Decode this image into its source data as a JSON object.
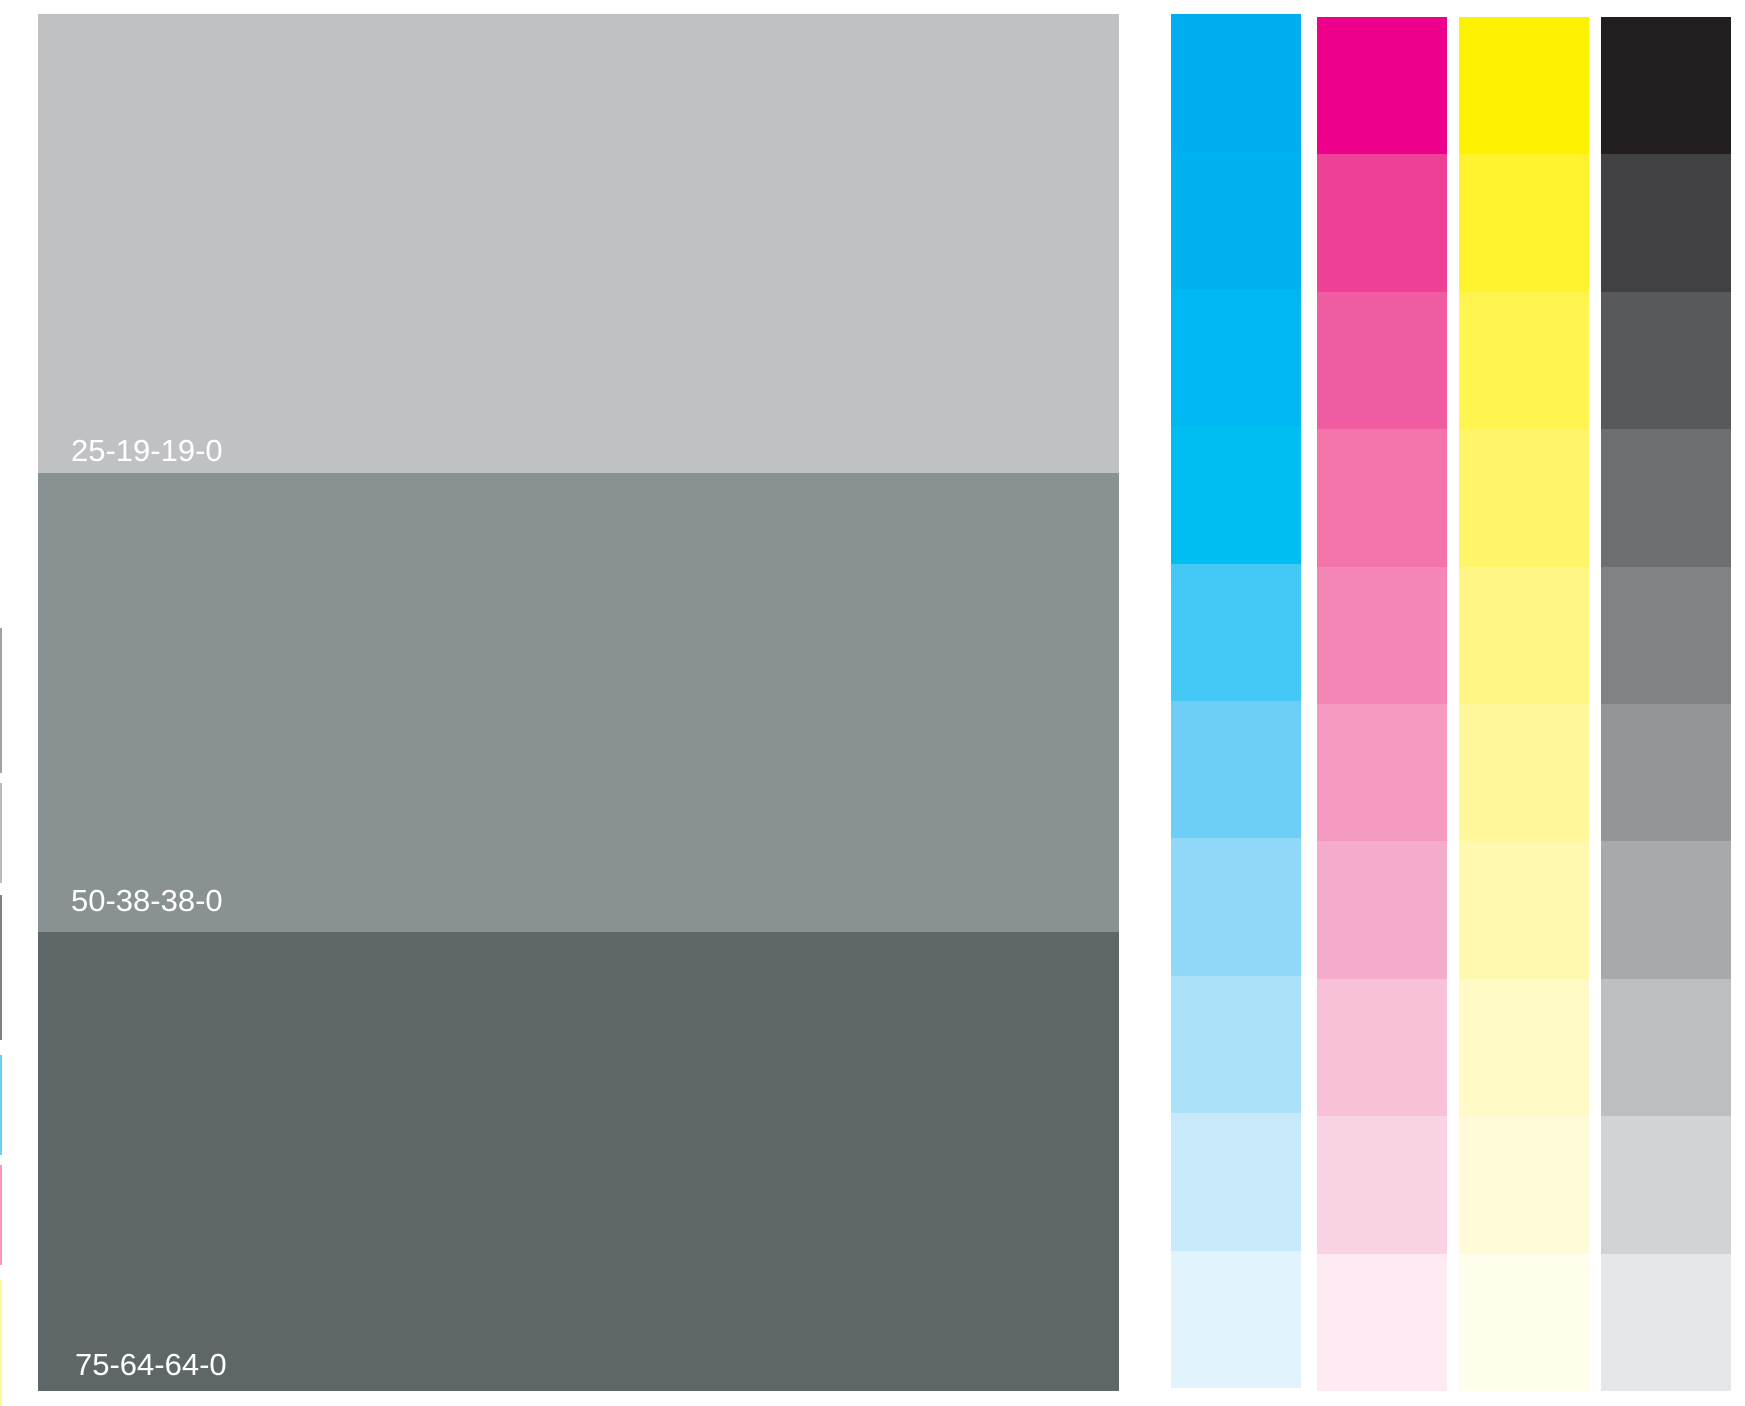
{
  "gray_swatches": [
    {
      "label": "25-19-19-0",
      "color": "#c0c1c3"
    },
    {
      "label": "50-38-38-0",
      "color": "#8a9193"
    },
    {
      "label": "75-64-64-0",
      "color": "#5f6668"
    }
  ],
  "ink_ramps": [
    {
      "ink": "cyan",
      "steps": [
        "#00aeef",
        "#00b1f0",
        "#00b8f1",
        "#00bdf2",
        "#44c8f5",
        "#6dcff6",
        "#8fd8f8",
        "#ace2f9",
        "#c7e9fa",
        "#e1f4fd"
      ]
    },
    {
      "ink": "magenta",
      "steps": [
        "#ec008c",
        "#ef4097",
        "#f05ca1",
        "#f274a9",
        "#f386b4",
        "#f49ac1",
        "#f5abcb",
        "#f8c1d8",
        "#f9d3e4",
        "#fdeaf2"
      ]
    },
    {
      "ink": "yellow",
      "steps": [
        "#fff200",
        "#fff330",
        "#fff450",
        "#fff56b",
        "#fff685",
        "#fff79a",
        "#fff9b0",
        "#fffac6",
        "#fffbd8",
        "#fffdec"
      ]
    },
    {
      "ink": "black",
      "steps": [
        "#231f20",
        "#414042",
        "#58595b",
        "#6d6e70",
        "#808285",
        "#939598",
        "#a7a9ac",
        "#bcbec0",
        "#d1d3d4",
        "#e6e7e8"
      ]
    }
  ]
}
